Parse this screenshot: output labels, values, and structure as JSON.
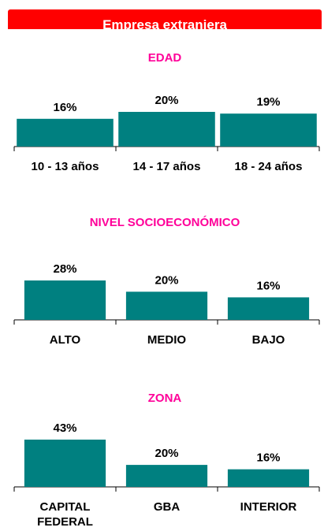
{
  "header": {
    "title": "Empresa extranjera"
  },
  "chart_data": [
    {
      "type": "bar",
      "title": "EDAD",
      "categories": [
        "10 - 13 años",
        "14 - 17 años",
        "18 - 24 años"
      ],
      "values": [
        16,
        20,
        19
      ],
      "value_labels": [
        "16%",
        "20%",
        "19%"
      ],
      "color": "#008080"
    },
    {
      "type": "bar",
      "title": "NIVEL SOCIOECONÓMICO",
      "categories": [
        "ALTO",
        "MEDIO",
        "BAJO"
      ],
      "values": [
        28,
        20,
        16
      ],
      "value_labels": [
        "28%",
        "20%",
        "16%"
      ],
      "color": "#008080"
    },
    {
      "type": "bar",
      "title": "ZONA",
      "categories": [
        "CAPITAL FEDERAL",
        "GBA",
        "INTERIOR"
      ],
      "values": [
        43,
        20,
        16
      ],
      "value_labels": [
        "43%",
        "20%",
        "16%"
      ],
      "color": "#008080"
    }
  ]
}
